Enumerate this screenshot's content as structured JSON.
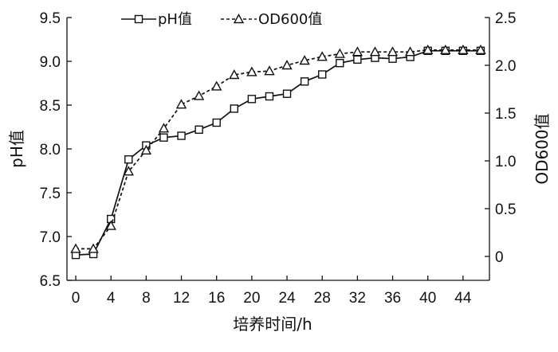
{
  "chart_data": {
    "type": "line",
    "xlabel": "培养时间/h",
    "ylabel_left": "pH值",
    "ylabel_right": "OD600值",
    "x_ticks": [
      0,
      4,
      8,
      12,
      16,
      20,
      24,
      28,
      32,
      36,
      40,
      44
    ],
    "y_left_ticks": [
      "6.5",
      "7.0",
      "7.5",
      "8.0",
      "8.5",
      "9.0",
      "9.5"
    ],
    "y_right_ticks": [
      "0",
      "0.5",
      "1.0",
      "1.5",
      "2.0",
      "2.5"
    ],
    "xlim": [
      -1,
      47
    ],
    "ylim_left": [
      6.5,
      9.5
    ],
    "ylim_right": [
      -0.25,
      2.5
    ],
    "legend_position": "top-left",
    "grid": false,
    "series": [
      {
        "name": "pH值",
        "axis": "left",
        "marker": "square",
        "line_style": "solid",
        "x": [
          0,
          2,
          4,
          6,
          8,
          10,
          12,
          14,
          16,
          18,
          20,
          22,
          24,
          26,
          28,
          30,
          32,
          34,
          36,
          38,
          40,
          42,
          44,
          46
        ],
        "values": [
          6.79,
          6.8,
          7.2,
          7.88,
          8.04,
          8.13,
          8.15,
          8.22,
          8.3,
          8.46,
          8.57,
          8.6,
          8.63,
          8.77,
          8.85,
          8.98,
          9.02,
          9.04,
          9.03,
          9.05,
          9.12,
          9.12,
          9.12,
          9.12
        ]
      },
      {
        "name": "OD600值",
        "axis": "right",
        "marker": "triangle",
        "line_style": "dashed",
        "x": [
          0,
          2,
          4,
          6,
          8,
          10,
          12,
          14,
          16,
          18,
          20,
          22,
          24,
          26,
          28,
          30,
          32,
          34,
          36,
          38,
          40,
          42,
          44,
          46
        ],
        "values": [
          0.08,
          0.08,
          0.32,
          0.89,
          1.11,
          1.34,
          1.59,
          1.68,
          1.78,
          1.9,
          1.93,
          1.94,
          2.0,
          2.05,
          2.09,
          2.12,
          2.14,
          2.14,
          2.14,
          2.14,
          2.16,
          2.16,
          2.16,
          2.16
        ]
      }
    ]
  }
}
